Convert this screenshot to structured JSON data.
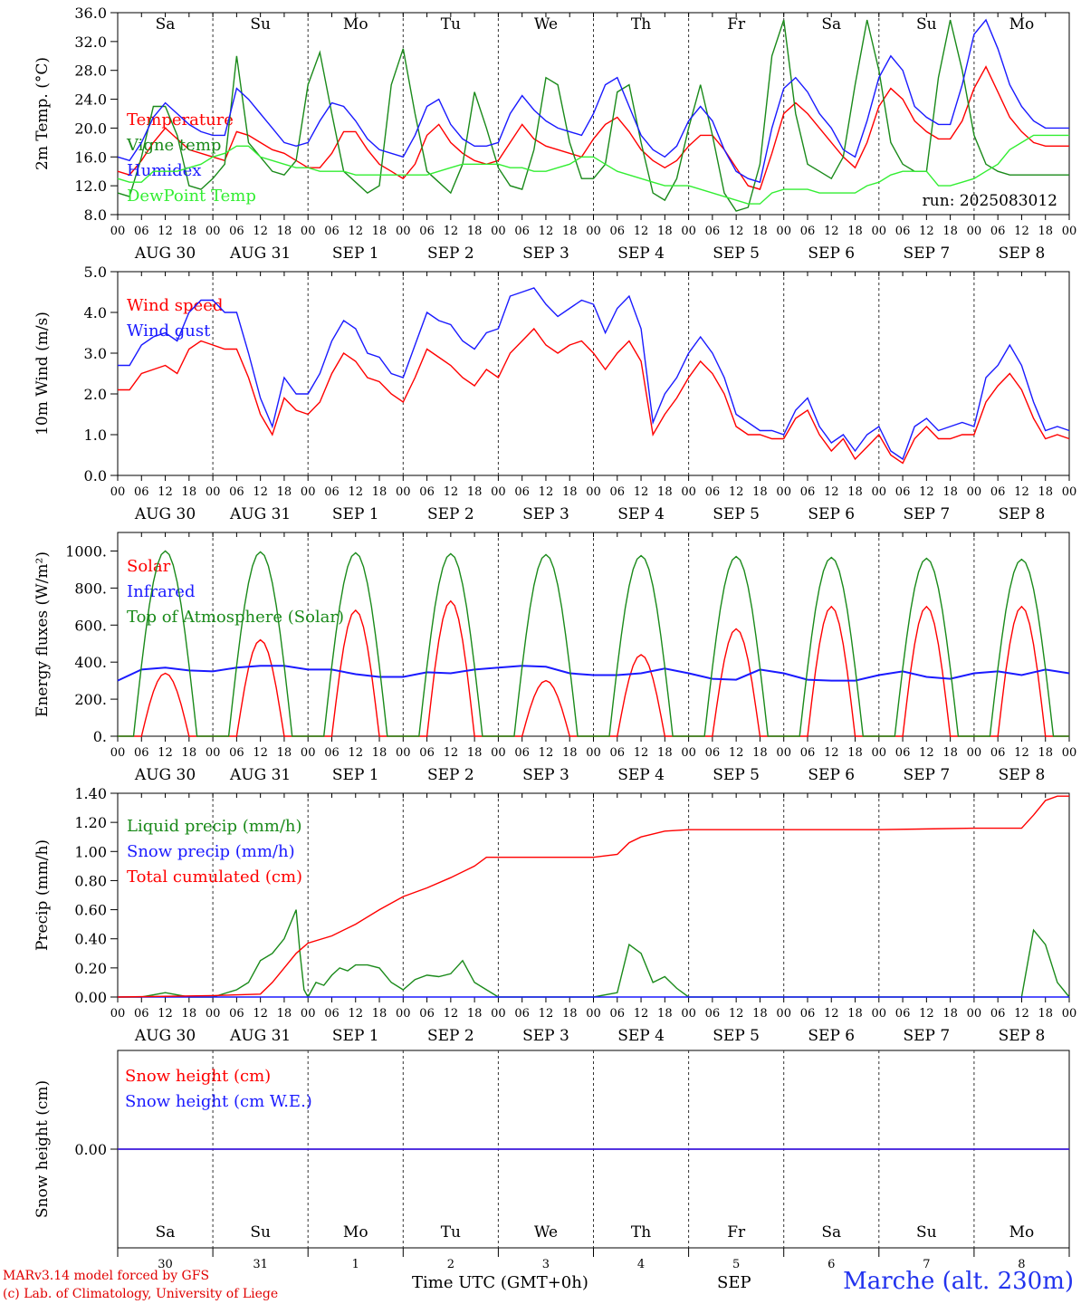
{
  "footer": {
    "model_line": "MARv3.14 model forced by GFS",
    "copyright_line": "(c) Lab. of Climatology, University of Liege",
    "x_title": "Time UTC (GMT+0h)",
    "month_label": "SEP",
    "station": "Marche (alt. 230m)"
  },
  "colors": {
    "red": "#ff0000",
    "green": "#1a8a1a",
    "blue": "#1a1aff",
    "lightgreen": "#33ee33"
  },
  "axis": {
    "hour_ticks": [
      "00",
      "06",
      "12",
      "18"
    ],
    "last_tick": "00",
    "dates": [
      "AUG 30",
      "AUG 31",
      "SEP  1",
      "SEP  2",
      "SEP  3",
      "SEP  4",
      "SEP  5",
      "SEP  6",
      "SEP  7",
      "SEP  8"
    ],
    "days": [
      "Sa",
      "Su",
      "Mo",
      "Tu",
      "We",
      "Th",
      "Fr",
      "Sa",
      "Su",
      "Mo"
    ],
    "weekend": [
      true,
      true,
      false,
      false,
      false,
      false,
      false,
      true,
      true,
      false
    ],
    "day_numbers": [
      "30",
      "31",
      "1",
      "2",
      "3",
      "4",
      "5",
      "6",
      "7",
      "8"
    ]
  },
  "chart_data": [
    {
      "type": "line",
      "id": "temp",
      "ylabel": "2m Temp. (°C)",
      "ylim": [
        8,
        36
      ],
      "yticks": [
        "8.0",
        "12.0",
        "16.0",
        "20.0",
        "24.0",
        "28.0",
        "32.0",
        "36.0"
      ],
      "ytick_values": [
        8,
        12,
        16,
        20,
        24,
        28,
        32,
        36
      ],
      "annotation": "run: 2025083012",
      "x_hours": [
        0,
        3,
        6,
        9,
        12,
        15,
        18,
        21,
        24,
        27,
        30,
        33,
        36,
        39,
        42,
        45,
        48,
        51,
        54,
        57,
        60,
        63,
        66,
        69,
        72,
        75,
        78,
        81,
        84,
        87,
        90,
        93,
        96,
        99,
        102,
        105,
        108,
        111,
        114,
        117,
        120,
        123,
        126,
        129,
        132,
        135,
        138,
        141,
        144,
        147,
        150,
        153,
        156,
        159,
        162,
        165,
        168,
        171,
        174,
        177,
        180,
        183,
        186,
        189,
        192,
        195,
        198,
        201,
        204,
        207,
        210,
        213,
        216,
        219,
        222,
        225,
        228,
        231,
        234,
        237,
        240
      ],
      "series": [
        {
          "name": "Temperature",
          "color": "#ff0000",
          "values": [
            14,
            13.5,
            15.5,
            18,
            20,
            18.5,
            17,
            16.5,
            16,
            15.5,
            19.5,
            19,
            18,
            17,
            16.5,
            15.5,
            14.5,
            14.5,
            16.5,
            19.5,
            19.5,
            17,
            15,
            14,
            13,
            15,
            19,
            20.5,
            18,
            16.5,
            15.5,
            15,
            15.5,
            18,
            20.5,
            18.5,
            17.5,
            17,
            16.5,
            16,
            18.5,
            20.5,
            21.5,
            19.5,
            17,
            15.5,
            14.5,
            15.5,
            17.5,
            19,
            19,
            17,
            14.5,
            12,
            11.5,
            16.5,
            22,
            23.5,
            22,
            20,
            18,
            16,
            14.5,
            18,
            23,
            25.5,
            24,
            21,
            19.5,
            18.5,
            18.5,
            21,
            25.5,
            28.5,
            25,
            21.5,
            19.5,
            18,
            17.5,
            17.5,
            17.5
          ]
        },
        {
          "name": "Vigne temp",
          "color": "#1a8a1a",
          "values": [
            11,
            10.5,
            16,
            23,
            23,
            19,
            12,
            11.5,
            13,
            15,
            30,
            18,
            16,
            14,
            13.5,
            15.5,
            26,
            30.5,
            22,
            14,
            12.5,
            11,
            12,
            26,
            31,
            22,
            14,
            12.5,
            11,
            15,
            25,
            20,
            14.5,
            12,
            11.5,
            17,
            27,
            26,
            18,
            13,
            13,
            15,
            25,
            26,
            18,
            11,
            10,
            13,
            20,
            26,
            19,
            11,
            8.5,
            9,
            15,
            30,
            35,
            22,
            15,
            14,
            13,
            16,
            26,
            35,
            28,
            18,
            15,
            14,
            14,
            27,
            35,
            28,
            19,
            15,
            14,
            13.5,
            13.5,
            13.5,
            13.5,
            13.5,
            13.5
          ]
        },
        {
          "name": "Humidex",
          "color": "#1a1aff",
          "values": [
            16,
            15.5,
            18,
            21.5,
            23.5,
            22,
            20.5,
            19.5,
            19,
            19,
            25.5,
            24,
            22,
            20,
            18,
            17.5,
            18,
            21,
            23.5,
            23,
            21,
            18.5,
            17,
            16.5,
            16,
            19,
            23,
            24,
            20.5,
            18.5,
            17.5,
            17.5,
            18,
            22,
            24.5,
            22.5,
            21,
            20,
            19.5,
            19,
            22,
            26,
            27,
            23,
            19,
            17,
            16,
            17.5,
            21,
            23,
            21,
            17,
            14,
            13,
            12.5,
            20,
            25.5,
            27,
            25,
            22,
            20,
            17,
            16,
            21,
            27,
            30,
            28,
            23,
            21.5,
            20.5,
            20.5,
            26,
            33,
            35,
            31,
            26,
            23,
            21,
            20,
            20,
            20
          ]
        },
        {
          "name": "DewPoint Temp",
          "color": "#33ee33",
          "values": [
            13,
            12.5,
            12.5,
            14,
            14,
            14,
            14.5,
            15,
            16,
            16.5,
            17.5,
            17.5,
            16,
            15.5,
            15,
            14.5,
            14.5,
            14,
            14,
            14,
            13.5,
            13.5,
            13.5,
            13.5,
            13.5,
            13.5,
            13.5,
            14,
            14.5,
            15,
            15,
            15,
            15,
            14.5,
            14.5,
            14,
            14,
            14.5,
            15,
            16,
            16,
            15,
            14,
            13.5,
            13,
            12.5,
            12,
            12,
            12,
            11.5,
            11,
            10.5,
            10,
            9.5,
            9.5,
            11,
            11.5,
            11.5,
            11.5,
            11,
            11,
            11,
            11,
            12,
            12.5,
            13.5,
            14,
            14,
            14,
            12,
            12,
            12.5,
            13,
            14,
            15,
            17,
            18,
            19,
            19,
            19,
            19
          ]
        }
      ]
    },
    {
      "type": "line",
      "id": "wind",
      "ylabel": "10m Wind (m/s)",
      "ylim": [
        0,
        5
      ],
      "yticks": [
        "0.0",
        "1.0",
        "2.0",
        "3.0",
        "4.0",
        "5.0"
      ],
      "ytick_values": [
        0,
        1,
        2,
        3,
        4,
        5
      ],
      "x_hours": [
        0,
        3,
        6,
        9,
        12,
        15,
        18,
        21,
        24,
        27,
        30,
        33,
        36,
        39,
        42,
        45,
        48,
        51,
        54,
        57,
        60,
        63,
        66,
        69,
        72,
        75,
        78,
        81,
        84,
        87,
        90,
        93,
        96,
        99,
        102,
        105,
        108,
        111,
        114,
        117,
        120,
        123,
        126,
        129,
        132,
        135,
        138,
        141,
        144,
        147,
        150,
        153,
        156,
        159,
        162,
        165,
        168,
        171,
        174,
        177,
        180,
        183,
        186,
        189,
        192,
        195,
        198,
        201,
        204,
        207,
        210,
        213,
        216,
        219,
        222,
        225,
        228,
        231,
        234,
        237,
        240
      ],
      "series": [
        {
          "name": "Wind speed",
          "color": "#ff0000",
          "values": [
            2.1,
            2.1,
            2.5,
            2.6,
            2.7,
            2.5,
            3.1,
            3.3,
            3.2,
            3.1,
            3.1,
            2.4,
            1.5,
            1.0,
            1.9,
            1.6,
            1.5,
            1.8,
            2.5,
            3.0,
            2.8,
            2.4,
            2.3,
            2.0,
            1.8,
            2.4,
            3.1,
            2.9,
            2.7,
            2.4,
            2.2,
            2.6,
            2.4,
            3.0,
            3.3,
            3.6,
            3.2,
            3.0,
            3.2,
            3.3,
            3.0,
            2.6,
            3.0,
            3.3,
            2.8,
            1.0,
            1.5,
            1.9,
            2.4,
            2.8,
            2.5,
            2.0,
            1.2,
            1.0,
            1.0,
            0.9,
            0.9,
            1.4,
            1.6,
            1.0,
            0.6,
            0.9,
            0.4,
            0.7,
            1.0,
            0.5,
            0.3,
            0.9,
            1.2,
            0.9,
            0.9,
            1.0,
            1.0,
            1.8,
            2.2,
            2.5,
            2.1,
            1.4,
            0.9,
            1.0,
            0.9
          ]
        },
        {
          "name": "Wind gust",
          "color": "#1a1aff",
          "values": [
            2.7,
            2.7,
            3.2,
            3.4,
            3.5,
            3.3,
            4.0,
            4.3,
            4.3,
            4.0,
            4.0,
            3.0,
            1.9,
            1.2,
            2.4,
            2.0,
            2.0,
            2.5,
            3.3,
            3.8,
            3.6,
            3.0,
            2.9,
            2.5,
            2.4,
            3.2,
            4.0,
            3.8,
            3.7,
            3.3,
            3.1,
            3.5,
            3.6,
            4.4,
            4.5,
            4.6,
            4.2,
            3.9,
            4.1,
            4.3,
            4.2,
            3.5,
            4.1,
            4.4,
            3.6,
            1.3,
            2.0,
            2.4,
            3.0,
            3.4,
            3.0,
            2.4,
            1.5,
            1.3,
            1.1,
            1.1,
            1.0,
            1.6,
            1.9,
            1.2,
            0.8,
            1.0,
            0.6,
            1.0,
            1.2,
            0.6,
            0.4,
            1.2,
            1.4,
            1.1,
            1.2,
            1.3,
            1.2,
            2.4,
            2.7,
            3.2,
            2.7,
            1.8,
            1.1,
            1.2,
            1.1
          ]
        }
      ]
    },
    {
      "type": "line",
      "id": "energy",
      "ylabel": "Energy fluxes (W/m²)",
      "ylim": [
        0,
        1100
      ],
      "yticks": [
        "0.",
        "200.",
        "400.",
        "600.",
        "800.",
        "1000."
      ],
      "ytick_values": [
        0,
        200,
        400,
        600,
        800,
        1000
      ],
      "series": [
        {
          "name": "Solar",
          "color": "#ff0000",
          "peaks": [
            340,
            520,
            680,
            730,
            300,
            440,
            580,
            700,
            700,
            700
          ]
        },
        {
          "name": "Infrared",
          "color": "#1a1aff",
          "x_hours": [
            0,
            6,
            12,
            18,
            24,
            30,
            36,
            42,
            48,
            54,
            60,
            66,
            72,
            78,
            84,
            90,
            96,
            102,
            108,
            114,
            120,
            126,
            132,
            138,
            144,
            150,
            156,
            162,
            168,
            174,
            180,
            186,
            192,
            198,
            204,
            210,
            216,
            222,
            228,
            234,
            240
          ],
          "values": [
            300,
            360,
            370,
            355,
            350,
            370,
            380,
            380,
            360,
            360,
            335,
            320,
            320,
            345,
            340,
            360,
            370,
            380,
            375,
            340,
            330,
            330,
            340,
            365,
            340,
            310,
            305,
            360,
            340,
            305,
            300,
            300,
            330,
            350,
            320,
            310,
            340,
            350,
            330,
            360,
            340
          ]
        },
        {
          "name": "Top of Atmosphere (Solar)",
          "color": "#1a8a1a",
          "peaks": [
            1000,
            995,
            990,
            985,
            980,
            975,
            970,
            965,
            960,
            955
          ]
        }
      ]
    },
    {
      "type": "line",
      "id": "precip",
      "ylabel": "Precip (mm/h)",
      "ylim": [
        0,
        1.4
      ],
      "yticks": [
        "0.00",
        "0.20",
        "0.40",
        "0.60",
        "0.80",
        "1.00",
        "1.20",
        "1.40"
      ],
      "ytick_values": [
        0,
        0.2,
        0.4,
        0.6,
        0.8,
        1.0,
        1.2,
        1.4
      ],
      "series": [
        {
          "name": "Liquid precip (mm/h)",
          "color": "#1a8a1a",
          "x_hours": [
            0,
            6,
            12,
            18,
            24,
            30,
            33,
            36,
            39,
            42,
            45,
            46,
            47,
            48,
            50,
            52,
            54,
            56,
            58,
            60,
            63,
            66,
            69,
            72,
            75,
            78,
            81,
            84,
            87,
            90,
            96,
            114,
            120,
            126,
            129,
            132,
            135,
            138,
            141,
            144,
            150,
            168,
            192,
            210,
            216,
            228,
            231,
            234,
            237,
            240
          ],
          "values": [
            0,
            0,
            0.03,
            0,
            0,
            0.05,
            0.1,
            0.25,
            0.3,
            0.4,
            0.6,
            0.3,
            0.05,
            0,
            0.1,
            0.08,
            0.15,
            0.2,
            0.18,
            0.22,
            0.22,
            0.2,
            0.1,
            0.05,
            0.12,
            0.15,
            0.14,
            0.16,
            0.25,
            0.1,
            0,
            0,
            0,
            0.03,
            0.36,
            0.3,
            0.1,
            0.14,
            0.06,
            0,
            0,
            0,
            0,
            0,
            0,
            0,
            0.46,
            0.36,
            0.1,
            0
          ]
        },
        {
          "name": "Snow precip (mm/h)",
          "color": "#1a1aff",
          "x_hours": [
            0,
            240
          ],
          "values": [
            0,
            0
          ]
        },
        {
          "name": "Total cumulated (cm)",
          "color": "#ff0000",
          "x_hours": [
            0,
            24,
            36,
            39,
            42,
            45,
            48,
            54,
            60,
            66,
            72,
            78,
            84,
            90,
            93,
            96,
            108,
            120,
            126,
            129,
            132,
            138,
            144,
            150,
            168,
            192,
            216,
            228,
            231,
            234,
            237,
            240
          ],
          "values": [
            0,
            0.01,
            0.02,
            0.1,
            0.2,
            0.3,
            0.37,
            0.42,
            0.5,
            0.6,
            0.69,
            0.75,
            0.82,
            0.9,
            0.96,
            0.96,
            0.96,
            0.96,
            0.98,
            1.06,
            1.1,
            1.14,
            1.15,
            1.15,
            1.15,
            1.15,
            1.16,
            1.16,
            1.25,
            1.35,
            1.38,
            1.38
          ]
        }
      ]
    },
    {
      "type": "line",
      "id": "snow",
      "ylabel": "Snow height (cm)",
      "ylim": [
        -1,
        1
      ],
      "yticks": [
        "0.00"
      ],
      "ytick_values": [
        0
      ],
      "series": [
        {
          "name": "Snow height (cm)",
          "color": "#ff0000",
          "x_hours": [
            0,
            240
          ],
          "values": [
            0,
            0
          ]
        },
        {
          "name": "Snow height (cm W.E.)",
          "color": "#1a1aff",
          "x_hours": [
            0,
            240
          ],
          "values": [
            0,
            0
          ]
        }
      ]
    }
  ]
}
